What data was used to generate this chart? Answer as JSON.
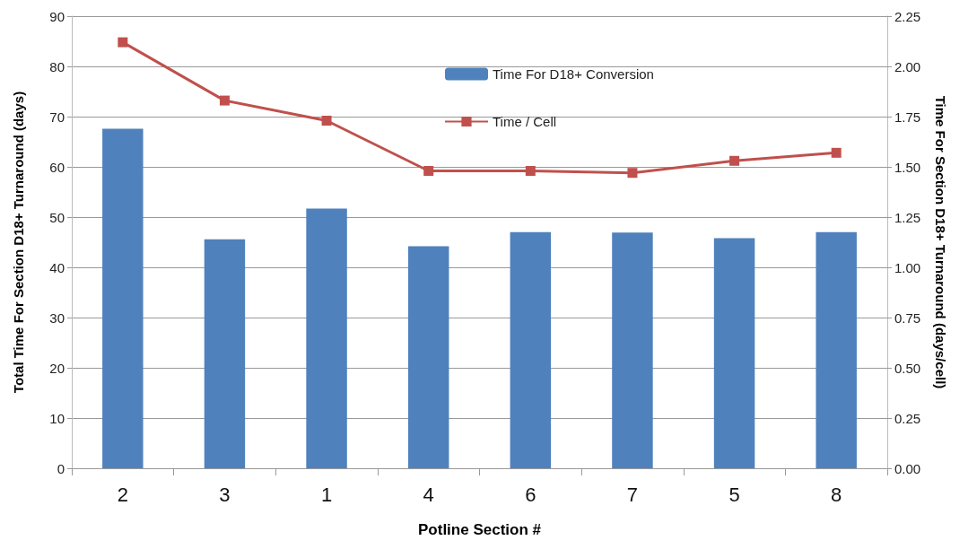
{
  "chart_data": {
    "type": "bar",
    "xlabel": "Potline Section #",
    "ylabel": "Total Time For Section D18+ Turnaround (days)",
    "y2label": "Time For Section D18+ Turnaround (days/cell)",
    "categories": [
      "2",
      "3",
      "1",
      "4",
      "6",
      "7",
      "5",
      "8"
    ],
    "series": [
      {
        "name": "Time For D18+ Conversion",
        "color": "#4f81bd",
        "values": [
          67.6,
          45.6,
          51.7,
          44.2,
          47.0,
          46.9,
          45.8,
          47.0
        ]
      },
      {
        "name": "Time / Cell",
        "type": "line",
        "axis": "y2",
        "color": "#c0504d",
        "marker": "square",
        "values": [
          2.12,
          1.83,
          1.73,
          1.48,
          1.48,
          1.47,
          1.53,
          1.57
        ]
      }
    ],
    "ylim": [
      0,
      90
    ],
    "yticks": [
      0,
      10,
      20,
      30,
      40,
      50,
      60,
      70,
      80,
      90
    ],
    "y2lim": [
      0,
      2.25
    ],
    "y2ticks": [
      {
        "value": 0,
        "label": "0.00"
      },
      0.25,
      {
        "value": 0.5,
        "label": "0.50"
      },
      0.75,
      {
        "value": 1,
        "label": "1.00"
      },
      1.25,
      {
        "value": 1.5,
        "label": "1.50"
      },
      1.75,
      {
        "value": 2,
        "label": "2.00"
      },
      2.25
    ],
    "grid": "y",
    "legend": "top"
  }
}
